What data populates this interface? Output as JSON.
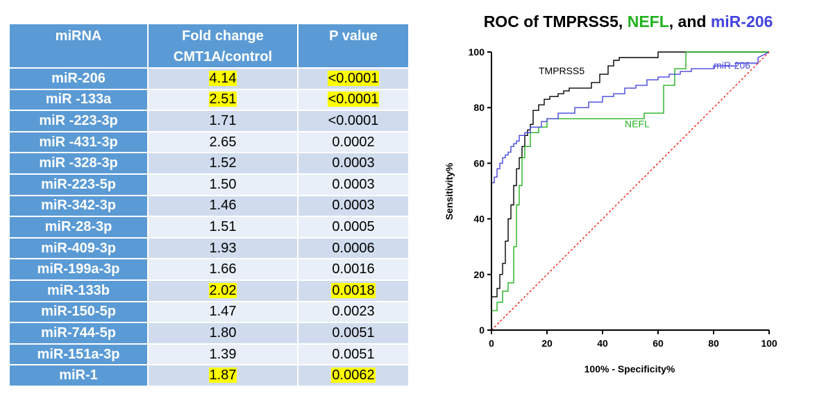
{
  "table": {
    "headers": [
      "miRNA",
      "Fold change",
      "CMT1A/control",
      "P value"
    ],
    "rows": [
      {
        "mirna": "miR-206",
        "fold": "4.14",
        "p": "<0.0001",
        "highlight": true
      },
      {
        "mirna": "miR -133a",
        "fold": "2.51",
        "p": "<0.0001",
        "highlight": true
      },
      {
        "mirna": "miR -223-3p",
        "fold": "1.71",
        "p": "<0.0001",
        "highlight": false
      },
      {
        "mirna": "miR -431-3p",
        "fold": "2.65",
        "p": "0.0002",
        "highlight": false
      },
      {
        "mirna": "miR -328-3p",
        "fold": "1.52",
        "p": "0.0003",
        "highlight": false
      },
      {
        "mirna": "miR-223-5p",
        "fold": "1.50",
        "p": "0.0003",
        "highlight": false
      },
      {
        "mirna": "miR-342-3p",
        "fold": "1.46",
        "p": "0.0003",
        "highlight": false
      },
      {
        "mirna": "miR-28-3p",
        "fold": "1.51",
        "p": "0.0005",
        "highlight": false
      },
      {
        "mirna": "miR-409-3p",
        "fold": "1.93",
        "p": "0.0006",
        "highlight": false
      },
      {
        "mirna": "miR-199a-3p",
        "fold": "1.66",
        "p": "0.0016",
        "highlight": false
      },
      {
        "mirna": "miR-133b",
        "fold": "2.02",
        "p": "0.0018",
        "highlight": true
      },
      {
        "mirna": "miR-150-5p",
        "fold": "1.47",
        "p": "0.0023",
        "highlight": false
      },
      {
        "mirna": "miR-744-5p",
        "fold": "1.80",
        "p": "0.0051",
        "highlight": false
      },
      {
        "mirna": "miR-151a-3p",
        "fold": "1.39",
        "p": "0.0051",
        "highlight": false
      },
      {
        "mirna": "miR-1",
        "fold": "1.87",
        "p": "0.0062",
        "highlight": true
      }
    ]
  },
  "chart_data": {
    "type": "line",
    "title_parts": [
      {
        "text": "ROC of TMPRSS5",
        "color": "#000000"
      },
      {
        "text": ", ",
        "color": "#000000"
      },
      {
        "text": "NEFL",
        "color": "#22b21f"
      },
      {
        "text": ", and ",
        "color": "#000000"
      },
      {
        "text": "miR-206",
        "color": "#4444dd"
      }
    ],
    "xlabel": "100% - Specificity%",
    "ylabel": "Sensitivity%",
    "xlim": [
      0,
      100
    ],
    "ylim": [
      0,
      100
    ],
    "xticks": [
      0,
      20,
      40,
      60,
      80,
      100
    ],
    "yticks": [
      0,
      20,
      40,
      60,
      80,
      100
    ],
    "grid": false,
    "series": [
      {
        "name": "TMPRSS5",
        "color": "#000000",
        "label_at": [
          17,
          92
        ],
        "x": [
          0,
          0,
          2,
          2,
          3,
          3,
          4,
          4,
          5,
          5,
          6,
          6,
          7,
          7,
          8,
          8,
          9,
          9,
          10,
          10,
          11,
          11,
          12,
          12,
          13,
          13,
          14,
          14,
          15,
          15,
          17,
          17,
          19,
          19,
          21,
          21,
          24,
          24,
          26,
          26,
          28,
          28,
          36,
          36,
          39,
          39,
          42,
          42,
          44,
          44,
          46,
          46,
          60,
          60,
          100
        ],
        "y": [
          0,
          12,
          12,
          15,
          15,
          20,
          20,
          24,
          24,
          32,
          32,
          40,
          40,
          45,
          45,
          52,
          52,
          58,
          58,
          62,
          62,
          66,
          66,
          70,
          70,
          72,
          72,
          74,
          74,
          79,
          79,
          81,
          81,
          83,
          83,
          84,
          84,
          85,
          85,
          86,
          86,
          87,
          87,
          89,
          89,
          92,
          92,
          95,
          95,
          97,
          97,
          98,
          98,
          100,
          100
        ]
      },
      {
        "name": "NEFL",
        "color": "#22b21f",
        "label_at": [
          48,
          73
        ],
        "x": [
          0,
          0,
          2,
          2,
          4,
          4,
          6,
          6,
          8,
          8,
          9,
          9,
          10,
          10,
          11,
          11,
          12,
          12,
          14,
          14,
          17,
          17,
          20,
          20,
          55,
          55,
          62,
          62,
          66,
          66,
          70,
          70,
          100
        ],
        "y": [
          0,
          7,
          7,
          10,
          10,
          14,
          14,
          17,
          17,
          30,
          30,
          45,
          45,
          52,
          52,
          62,
          62,
          66,
          66,
          71,
          71,
          73,
          73,
          76,
          76,
          78,
          78,
          88,
          88,
          94,
          94,
          100,
          100
        ]
      },
      {
        "name": "miR-206",
        "color": "#4444dd",
        "label_at": [
          80,
          94
        ],
        "x": [
          0,
          0,
          1,
          1,
          2,
          2,
          3,
          3,
          4,
          4,
          5,
          5,
          6,
          6,
          7,
          7,
          8,
          8,
          9,
          9,
          10,
          10,
          12,
          12,
          14,
          14,
          18,
          18,
          20,
          20,
          24,
          24,
          30,
          30,
          35,
          35,
          40,
          40,
          44,
          44,
          48,
          48,
          52,
          52,
          56,
          56,
          60,
          60,
          64,
          64,
          68,
          68,
          72,
          72,
          80,
          80,
          88,
          88,
          96,
          96,
          100
        ],
        "y": [
          0,
          53,
          53,
          55,
          55,
          58,
          58,
          60,
          60,
          62,
          62,
          63,
          63,
          64,
          64,
          66,
          66,
          67,
          67,
          68,
          68,
          70,
          70,
          71,
          71,
          73,
          73,
          75,
          75,
          76,
          76,
          78,
          78,
          80,
          80,
          82,
          82,
          84,
          84,
          85,
          85,
          87,
          87,
          88,
          88,
          90,
          90,
          91,
          91,
          92,
          92,
          93,
          93,
          94,
          94,
          95,
          95,
          96,
          96,
          98,
          100
        ]
      },
      {
        "name": "reference",
        "color": "#ff0000",
        "dashed": true,
        "x": [
          0,
          100
        ],
        "y": [
          0,
          100
        ]
      }
    ]
  }
}
